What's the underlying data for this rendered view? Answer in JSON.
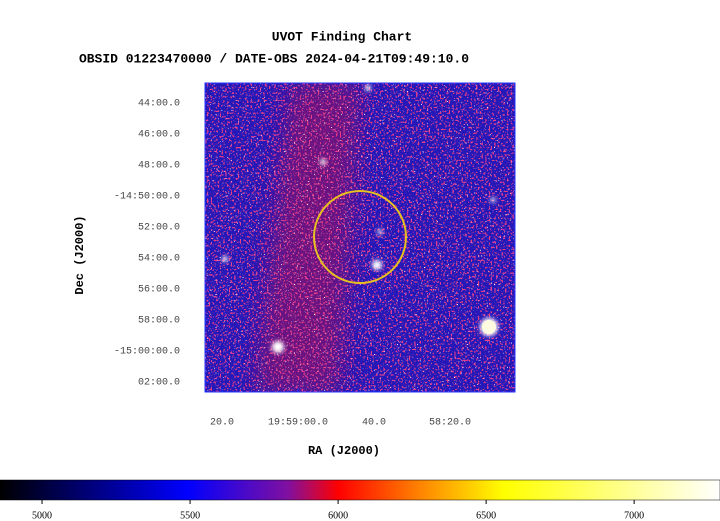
{
  "chart_data": {
    "type": "image",
    "title": "UVOT Finding Chart",
    "subtitle": "OBSID 01223470000 / DATE-OBS 2024-04-21T09:49:10.0",
    "xlabel": "RA (J2000)",
    "ylabel": "Dec (J2000)",
    "xlim": [
      299.852,
      299.512
    ],
    "xticks": [
      {
        "value": 299.8333,
        "label": "20.0"
      },
      {
        "value": 299.75,
        "label": "19:59:00.0"
      },
      {
        "value": 299.6667,
        "label": "40.0"
      },
      {
        "value": 299.5833,
        "label": "58:20.0"
      }
    ],
    "ylim": [
      -15.0441,
      -14.7118
    ],
    "yticks": [
      {
        "value": -14.7333,
        "label": "44:00.0"
      },
      {
        "value": -14.7667,
        "label": "46:00.0"
      },
      {
        "value": -14.8,
        "label": "48:00.0"
      },
      {
        "value": -14.8333,
        "label": "-14:50:00.0"
      },
      {
        "value": -14.8667,
        "label": "52:00.0"
      },
      {
        "value": -14.9,
        "label": "54:00.0"
      },
      {
        "value": -14.9333,
        "label": "56:00.0"
      },
      {
        "value": -14.9667,
        "label": "58:00.0"
      },
      {
        "value": -15.0,
        "label": "-15:00:00.0"
      },
      {
        "value": -15.0333,
        "label": "02:00.0"
      }
    ],
    "clim": [
      4858,
      7290
    ],
    "cticks": [
      5000,
      5500,
      6000,
      6500,
      7000
    ]
  }
}
